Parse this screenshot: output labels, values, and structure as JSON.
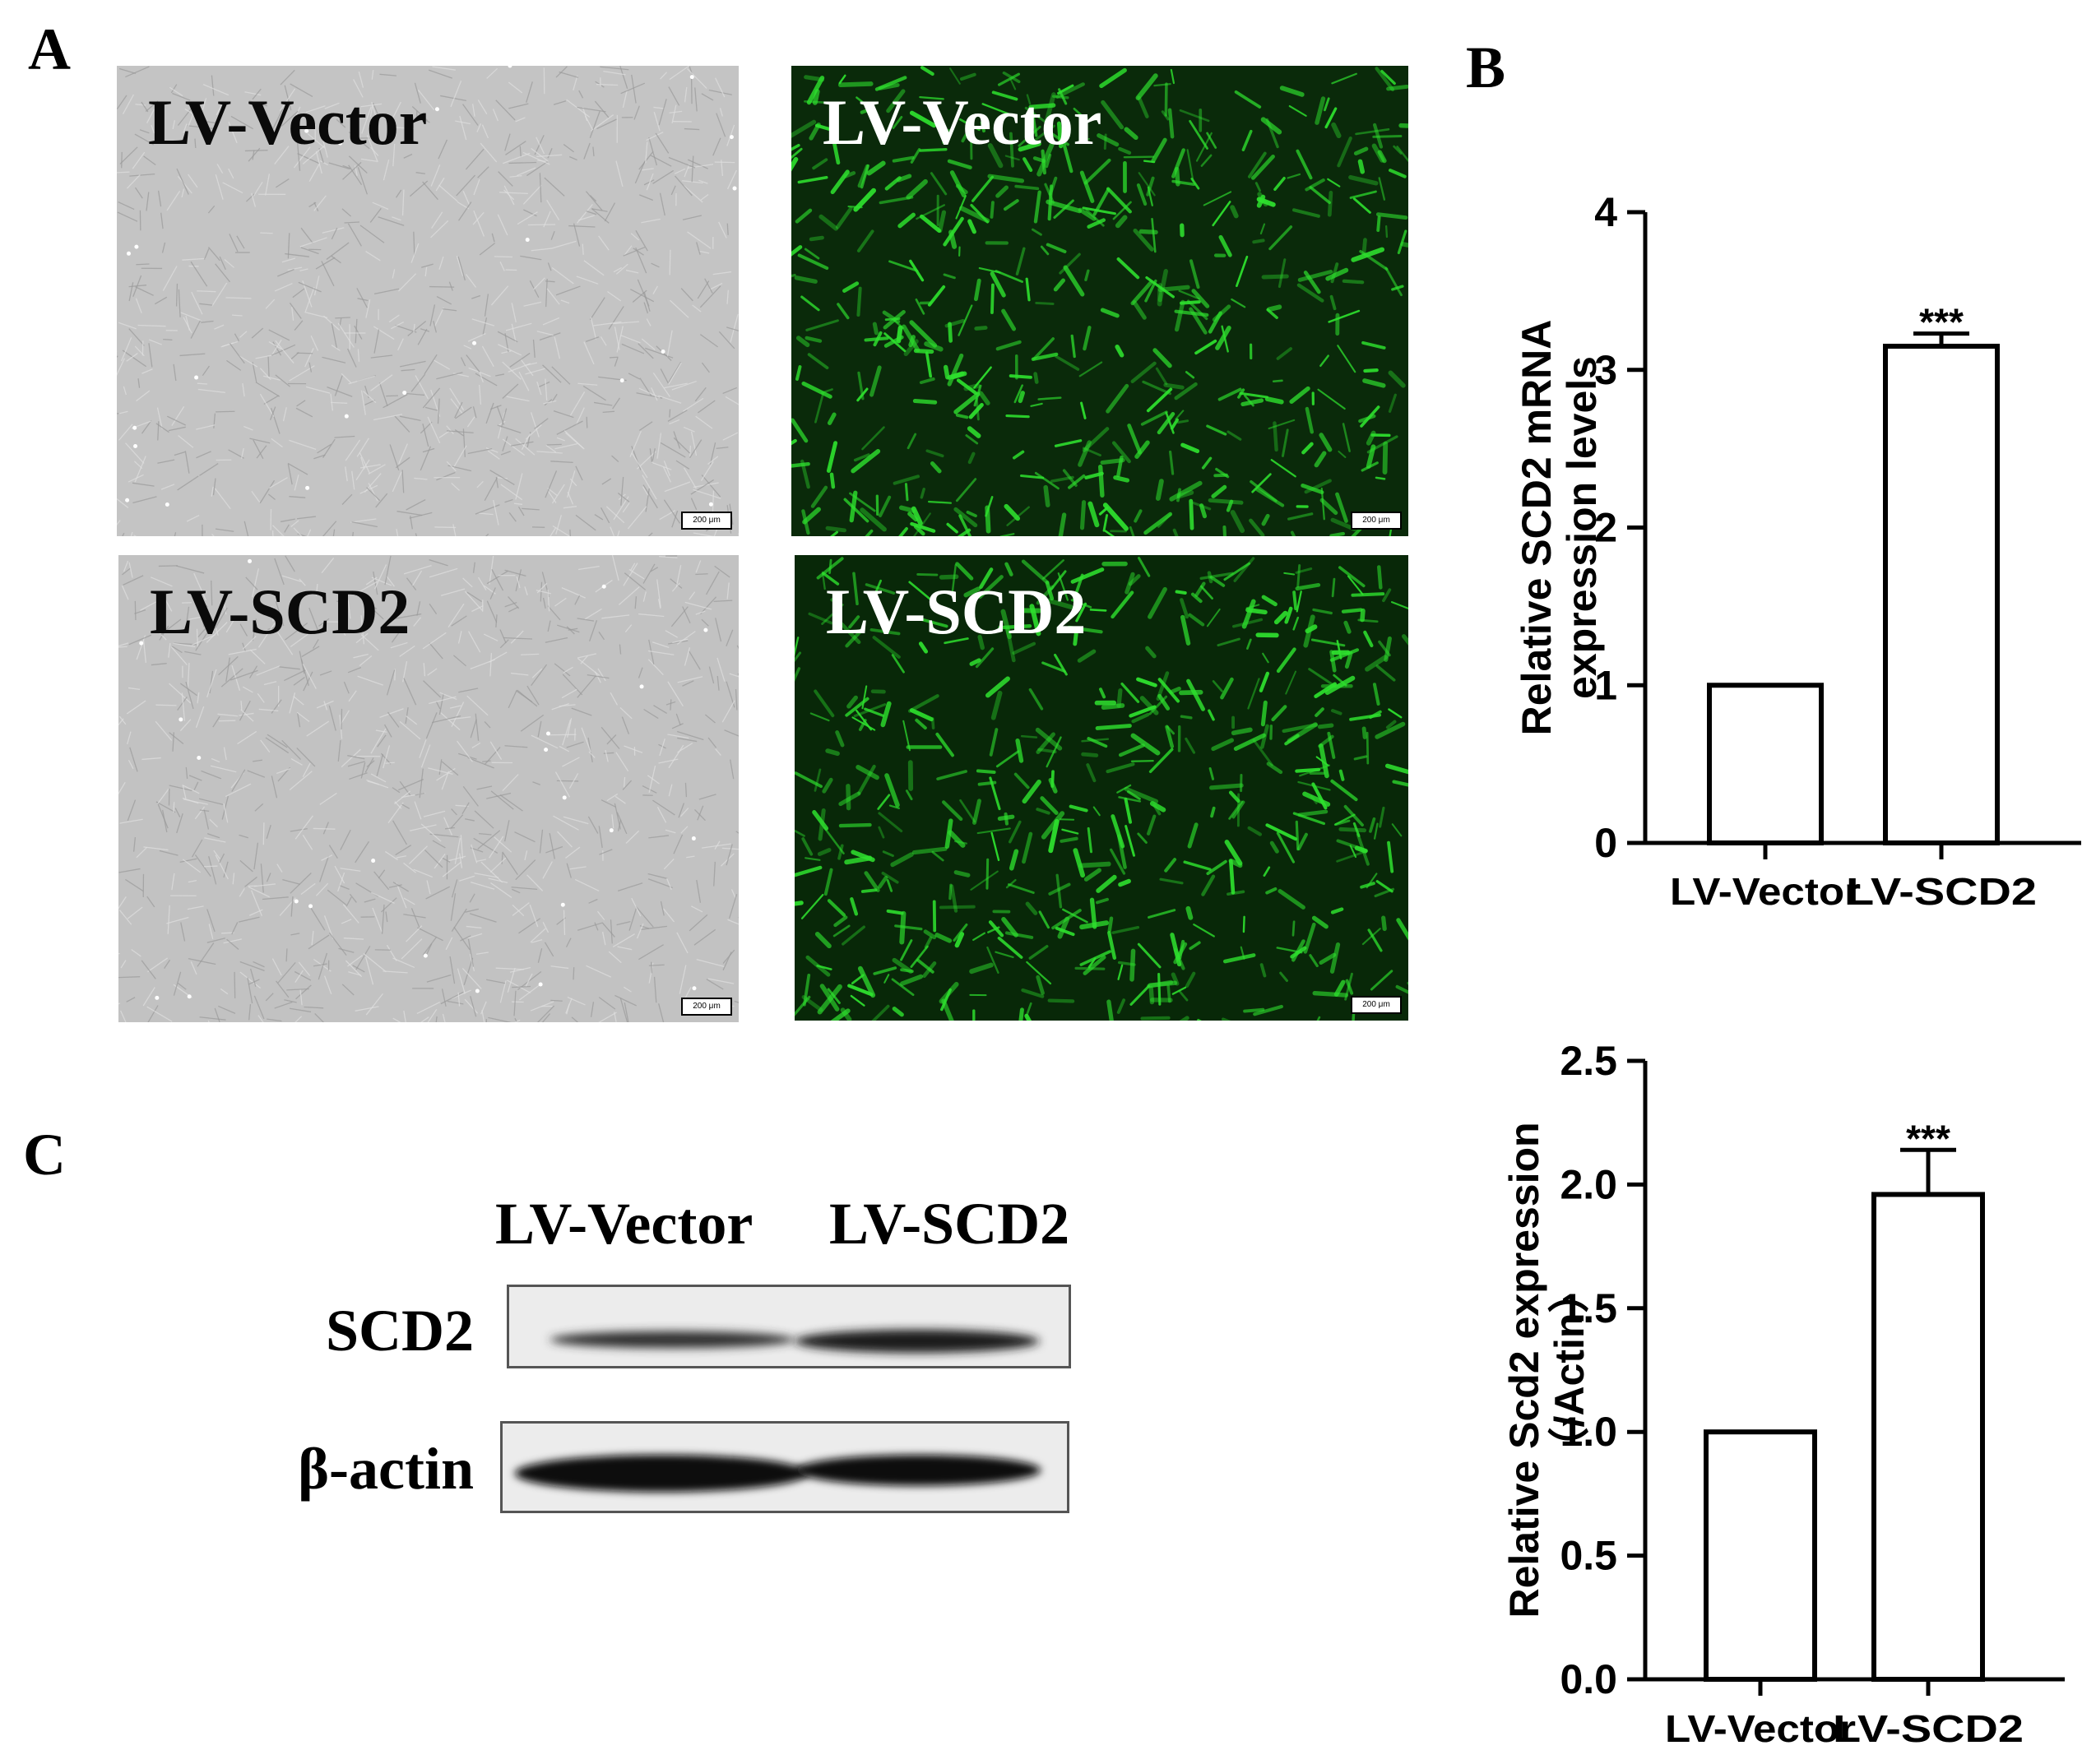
{
  "panels": {
    "A": "A",
    "B": "B",
    "C": "C"
  },
  "micrographs": {
    "bright_top_label": "LV-Vector",
    "bright_bottom_label": "LV-SCD2",
    "fluor_top_label": "LV-Vector",
    "fluor_bottom_label": "LV-SCD2",
    "scale_bar": "200 μm"
  },
  "western_blot": {
    "lanes": [
      "LV-Vector",
      "LV-SCD2"
    ],
    "rows": [
      "SCD2",
      "β-actin"
    ]
  },
  "colors": {
    "fluorescence": "#2ee02e",
    "bar_fill": "#ffffff",
    "axis": "#000000"
  },
  "chart_data": [
    {
      "type": "bar",
      "title": "",
      "categories": [
        "LV-Vector",
        "LV-SCD2"
      ],
      "values": [
        1.0,
        3.15
      ],
      "errors": [
        0,
        0.08
      ],
      "significance": [
        "",
        "***"
      ],
      "ylabel_lines": [
        "Relative SCD2 mRNA",
        "expression levels"
      ],
      "ylim": [
        0,
        4
      ],
      "yticks": [
        "0",
        "1",
        "2",
        "3",
        "4"
      ],
      "ytick_values": [
        0,
        1,
        2,
        3,
        4
      ],
      "grid": false
    },
    {
      "type": "bar",
      "title": "",
      "categories": [
        "LV-Vector",
        "LV-SCD2"
      ],
      "values": [
        1.0,
        1.96
      ],
      "errors": [
        0,
        0.18
      ],
      "significance": [
        "",
        "***"
      ],
      "ylabel_lines": [
        "Relative Scd2 expression",
        "（/Actin）"
      ],
      "ylim": [
        0,
        2.5
      ],
      "yticks": [
        "0.0",
        "0.5",
        "1.0",
        "1.5",
        "2.0",
        "2.5"
      ],
      "ytick_values": [
        0,
        0.5,
        1.0,
        1.5,
        2.0,
        2.5
      ],
      "grid": false
    }
  ]
}
